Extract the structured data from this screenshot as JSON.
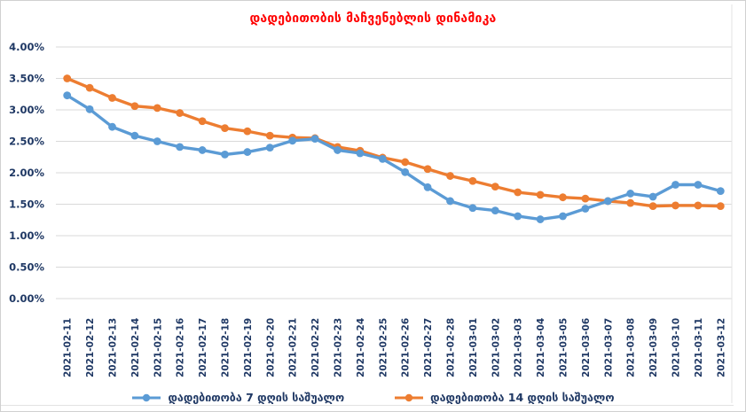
{
  "chart": {
    "title_color": "#FF0000",
    "axis_label_color": "#1F3864",
    "gridline_color": "#D9D9D9",
    "background_color": "#FFFFFF"
  },
  "chart_data": {
    "type": "line",
    "title": "დადებითობის მაჩვენებლის დინამიკა",
    "categories": [
      "2021-02-11",
      "2021-02-12",
      "2021-02-13",
      "2021-02-14",
      "2021-02-15",
      "2021-02-16",
      "2021-02-17",
      "2021-02-18",
      "2021-02-19",
      "2021-02-20",
      "2021-02-21",
      "2021-02-22",
      "2021-02-23",
      "2021-02-24",
      "2021-02-25",
      "2021-02-26",
      "2021-02-27",
      "2021-02-28",
      "2021-03-01",
      "2021-03-02",
      "2021-03-03",
      "2021-03-04",
      "2021-03-05",
      "2021-03-06",
      "2021-03-07",
      "2021-03-08",
      "2021-03-09",
      "2021-03-10",
      "2021-03-11",
      "2021-03-12"
    ],
    "series": [
      {
        "name": "დადებითობა 7 დღის საშუალო",
        "color": "#5B9BD5",
        "values": [
          3.23,
          3.01,
          2.73,
          2.59,
          2.5,
          2.41,
          2.36,
          2.29,
          2.33,
          2.4,
          2.51,
          2.54,
          2.36,
          2.31,
          2.22,
          2.01,
          1.77,
          1.55,
          1.44,
          1.4,
          1.31,
          1.26,
          1.31,
          1.43,
          1.55,
          1.67,
          1.62,
          1.81,
          1.81,
          1.71
        ]
      },
      {
        "name": "დადებითობა 14 დღის საშუალო",
        "color": "#ED7D31",
        "values": [
          3.5,
          3.35,
          3.19,
          3.06,
          3.03,
          2.95,
          2.82,
          2.71,
          2.66,
          2.59,
          2.56,
          2.55,
          2.41,
          2.35,
          2.24,
          2.17,
          2.06,
          1.95,
          1.87,
          1.78,
          1.69,
          1.65,
          1.61,
          1.59,
          1.55,
          1.52,
          1.47,
          1.48,
          1.48,
          1.47
        ]
      }
    ],
    "xlabel": "",
    "ylabel": "",
    "ylim": [
      0,
      4
    ],
    "ytick_step": 0.5,
    "ytick_labels": [
      "0.00%",
      "0.50%",
      "1.00%",
      "1.50%",
      "2.00%",
      "2.50%",
      "3.00%",
      "3.50%",
      "4.00%"
    ],
    "grid": "horizontal",
    "legend_position": "bottom"
  }
}
